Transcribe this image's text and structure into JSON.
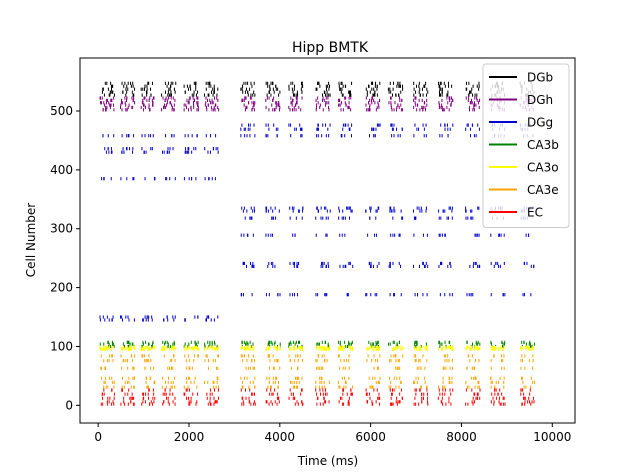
{
  "chart_data": {
    "type": "scatter",
    "title": "Hipp BMTK",
    "xlabel": "Time (ms)",
    "ylabel": "Cell Number",
    "xlim": [
      -400,
      10500
    ],
    "ylim": [
      -30,
      590
    ],
    "xticks": [
      0,
      2000,
      4000,
      6000,
      8000,
      10000
    ],
    "yticks": [
      0,
      100,
      200,
      300,
      400,
      500
    ],
    "grid": false,
    "legend_position": "top-right",
    "marker": "vertical tick (|)",
    "burst_times_ms": [
      200,
      650,
      1100,
      1550,
      2050,
      2500,
      3300,
      3850,
      4350,
      4950,
      5450,
      6050,
      6550,
      7100,
      7650,
      8250,
      8800,
      9450
    ],
    "series": [
      {
        "name": "DGb",
        "color": "#000000",
        "cells": [
          527,
          532,
          537,
          542,
          547
        ],
        "times": "all bursts"
      },
      {
        "name": "DGh",
        "color": "#800080",
        "cells": [
          502,
          506,
          510,
          514,
          518,
          522
        ],
        "times": "all bursts"
      },
      {
        "name": "DGg",
        "color": "#0000cc",
        "cells_before_3000ms": [
          458,
          436,
          430,
          385,
          150,
          145
        ],
        "cells_after_3000ms": [
          476,
          469,
          458,
          335,
          330,
          318,
          289,
          241,
          236,
          188
        ]
      },
      {
        "name": "CA3b",
        "color": "#008000",
        "cells": [
          100,
          104,
          107
        ],
        "times": "all bursts"
      },
      {
        "name": "CA3o",
        "color": "#ffff00",
        "cells": [
          95,
          96,
          97,
          98,
          99
        ],
        "times": "all bursts"
      },
      {
        "name": "CA3e",
        "color": "#ffa500",
        "cells": [
          84,
          76,
          63,
          46,
          39,
          31
        ],
        "times": "all bursts"
      },
      {
        "name": "EC",
        "color": "#ff0000",
        "cells": [
          26,
          19,
          12,
          6,
          2
        ],
        "times": "all bursts"
      }
    ]
  }
}
